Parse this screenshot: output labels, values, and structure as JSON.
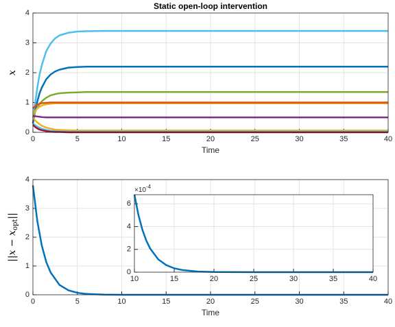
{
  "chart_data": [
    {
      "type": "line",
      "title": "Static open-loop intervention",
      "xlabel": "Time",
      "ylabel": {
        "main": "x"
      },
      "x": [
        0,
        0.25,
        0.5,
        0.75,
        1,
        1.5,
        2,
        2.5,
        3,
        4,
        5,
        6,
        8,
        10,
        20,
        30,
        40
      ],
      "xlim": [
        0,
        40
      ],
      "ylim": [
        0,
        4
      ],
      "xticks": [
        0,
        5,
        10,
        15,
        20,
        25,
        30,
        35,
        40
      ],
      "yticks": [
        0,
        1,
        2,
        3,
        4
      ],
      "grid": true,
      "series": [
        {
          "color": "#4DBEEE",
          "values": [
            0.3,
            0.98,
            1.51,
            1.94,
            2.25,
            2.72,
            2.98,
            3.15,
            3.25,
            3.34,
            3.38,
            3.39,
            3.4,
            3.4,
            3.4,
            3.4,
            3.4
          ]
        },
        {
          "color": "#0072BD",
          "values": [
            0.3,
            0.72,
            1.04,
            1.31,
            1.5,
            1.78,
            1.94,
            2.04,
            2.1,
            2.17,
            2.19,
            2.2,
            2.2,
            2.2,
            2.2,
            2.2,
            2.2
          ]
        },
        {
          "color": "#77AC30",
          "values": [
            0.5,
            0.69,
            0.83,
            0.95,
            1.04,
            1.16,
            1.24,
            1.28,
            1.31,
            1.33,
            1.34,
            1.35,
            1.35,
            1.35,
            1.35,
            1.35,
            1.35
          ]
        },
        {
          "color": "#EDB120",
          "values": [
            0.6,
            0.72,
            0.8,
            0.86,
            0.9,
            0.94,
            0.96,
            0.97,
            0.97,
            0.97,
            0.97,
            0.97,
            0.97,
            0.97,
            0.97,
            0.97,
            0.97
          ]
        },
        {
          "color": "#D95319",
          "values": [
            0.8,
            0.88,
            0.93,
            0.96,
            0.98,
            0.99,
            1.0,
            1.0,
            1.0,
            1.0,
            1.0,
            1.0,
            1.0,
            1.0,
            1.0,
            1.0,
            1.0
          ]
        },
        {
          "color": "#7E2F8E",
          "values": [
            0.55,
            0.54,
            0.53,
            0.52,
            0.51,
            0.5,
            0.5,
            0.5,
            0.5,
            0.5,
            0.5,
            0.5,
            0.5,
            0.5,
            0.5,
            0.5,
            0.5
          ]
        },
        {
          "color": "#EDB120",
          "values": [
            0.5,
            0.4,
            0.33,
            0.27,
            0.22,
            0.16,
            0.12,
            0.09,
            0.08,
            0.07,
            0.06,
            0.06,
            0.06,
            0.06,
            0.06,
            0.06,
            0.06
          ]
        },
        {
          "color": "#4DBEEE",
          "values": [
            0.3,
            0.24,
            0.19,
            0.15,
            0.12,
            0.08,
            0.05,
            0.04,
            0.03,
            0.02,
            0.02,
            0.02,
            0.02,
            0.02,
            0.02,
            0.02,
            0.02
          ]
        },
        {
          "color": "#A2142F",
          "values": [
            0.25,
            0.18,
            0.13,
            0.09,
            0.07,
            0.04,
            0.02,
            0.01,
            0.01,
            0,
            0,
            0,
            0,
            0,
            0,
            0,
            0
          ]
        }
      ]
    },
    {
      "type": "line",
      "xlabel": "Time",
      "ylabel": {
        "main": "||x − x",
        "sub": "opt",
        "end": "||"
      },
      "x": [
        0,
        0.5,
        1,
        1.5,
        2,
        3,
        4,
        5,
        6,
        8,
        10,
        15,
        20,
        30,
        40
      ],
      "xlim": [
        0,
        40
      ],
      "ylim": [
        0,
        4
      ],
      "xticks": [
        0,
        5,
        10,
        15,
        20,
        25,
        30,
        35,
        40
      ],
      "yticks": [
        0,
        1,
        2,
        3,
        4
      ],
      "grid": true,
      "series": [
        {
          "color": "#0072BD",
          "values": [
            3.8,
            2.55,
            1.71,
            1.14,
            0.77,
            0.34,
            0.155,
            0.07,
            0.031,
            0.0063,
            0.0013,
            2e-05,
            0,
            0,
            0
          ]
        }
      ]
    },
    {
      "type": "line",
      "y_multiplier": {
        "base": "×10",
        "exponent": "-4"
      },
      "x": [
        10,
        10.5,
        11,
        11.5,
        12,
        13,
        14,
        15,
        16,
        18,
        20,
        25,
        30,
        35,
        40
      ],
      "xlim": [
        10,
        40
      ],
      "ylim": [
        0,
        0.00068
      ],
      "xticks": [
        10,
        15,
        20,
        25,
        30,
        35,
        40
      ],
      "yticks": [
        0,
        {
          "value": 0.0002,
          "label": "2"
        },
        {
          "value": 0.0004,
          "label": "4"
        },
        {
          "value": 0.0006,
          "label": "6"
        }
      ],
      "grid": true,
      "series": [
        {
          "color": "#0072BD",
          "values": [
            0.00068,
            0.000504,
            0.000373,
            0.000276,
            0.000205,
            0.000112,
            6.2e-05,
            3.4e-05,
            1.9e-05,
            5.6e-06,
            1.7e-06,
            0,
            0,
            0,
            0
          ]
        }
      ]
    }
  ]
}
